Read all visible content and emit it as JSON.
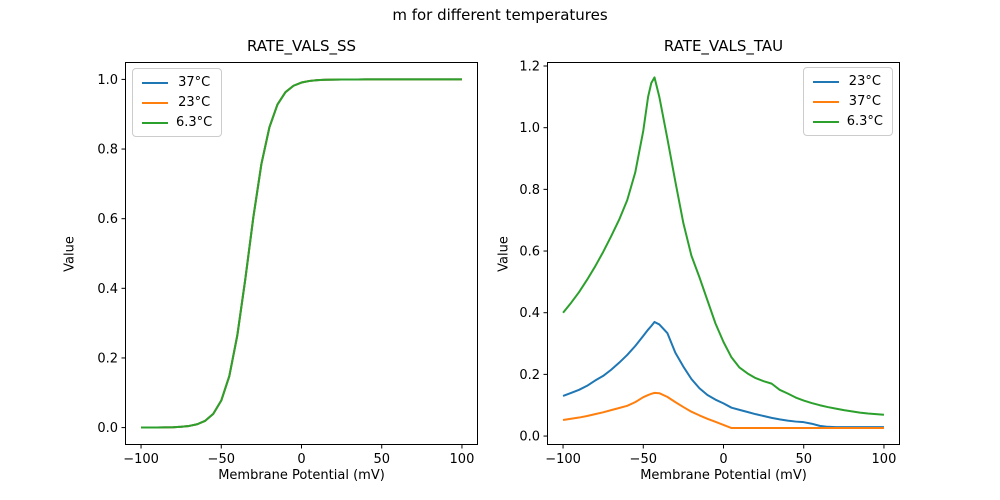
{
  "figure": {
    "suptitle": "m for different temperatures",
    "background": "#ffffff",
    "text_color": "#000000",
    "spine_color": "#000000",
    "legend_border_color": "#cccccc"
  },
  "chart_data": [
    {
      "type": "line",
      "title": "RATE_VALS_SS",
      "xlabel": "Membrane Potential (mV)",
      "ylabel": "Value",
      "grid": false,
      "legend_position": "upper left",
      "xlim": [
        -110,
        110
      ],
      "ylim": [
        -0.05,
        1.05
      ],
      "xticks": [
        -100,
        -50,
        0,
        50,
        100
      ],
      "yticks": [
        0.0,
        0.2,
        0.4,
        0.6,
        0.8,
        1.0
      ],
      "x": [
        -100,
        -95,
        -90,
        -85,
        -80,
        -75,
        -70,
        -65,
        -60,
        -55,
        -50,
        -45,
        -40,
        -35,
        -30,
        -25,
        -20,
        -15,
        -10,
        -5,
        0,
        5,
        10,
        15,
        20,
        25,
        30,
        35,
        40,
        45,
        50,
        55,
        60,
        65,
        70,
        75,
        80,
        85,
        90,
        95,
        100
      ],
      "series": [
        {
          "name": "37°C",
          "color": "#1f77b4",
          "values": [
            0.0001,
            0.0002,
            0.0003,
            0.0006,
            0.0011,
            0.0023,
            0.0047,
            0.0096,
            0.0196,
            0.0394,
            0.0777,
            0.1477,
            0.265,
            0.4271,
            0.6043,
            0.7569,
            0.8624,
            0.9277,
            0.9633,
            0.9818,
            0.991,
            0.9956,
            0.9978,
            0.9989,
            0.9995,
            0.9997,
            0.9999,
            0.9999,
            1,
            1,
            1,
            1,
            1,
            1,
            1,
            1,
            1,
            1,
            1,
            1,
            1
          ]
        },
        {
          "name": "23°C",
          "color": "#ff7f0e",
          "values": [
            0.0001,
            0.0002,
            0.0003,
            0.0006,
            0.0011,
            0.0023,
            0.0047,
            0.0096,
            0.0196,
            0.0394,
            0.0777,
            0.1477,
            0.265,
            0.4271,
            0.6043,
            0.7569,
            0.8624,
            0.9277,
            0.9633,
            0.9818,
            0.991,
            0.9956,
            0.9978,
            0.9989,
            0.9995,
            0.9997,
            0.9999,
            0.9999,
            1,
            1,
            1,
            1,
            1,
            1,
            1,
            1,
            1,
            1,
            1,
            1,
            1
          ]
        },
        {
          "name": "6.3°C",
          "color": "#2ca02c",
          "values": [
            0.0001,
            0.0002,
            0.0003,
            0.0006,
            0.0011,
            0.0023,
            0.0047,
            0.0096,
            0.0196,
            0.0394,
            0.0777,
            0.1477,
            0.265,
            0.4271,
            0.6043,
            0.7569,
            0.8624,
            0.9277,
            0.9633,
            0.9818,
            0.991,
            0.9956,
            0.9978,
            0.9989,
            0.9995,
            0.9997,
            0.9999,
            0.9999,
            1,
            1,
            1,
            1,
            1,
            1,
            1,
            1,
            1,
            1,
            1,
            1,
            1
          ]
        }
      ]
    },
    {
      "type": "line",
      "title": "RATE_VALS_TAU",
      "xlabel": "Membrane Potential (mV)",
      "ylabel": "Value",
      "grid": false,
      "legend_position": "upper right",
      "xlim": [
        -110,
        110
      ],
      "ylim": [
        -0.029,
        1.213
      ],
      "xticks": [
        -100,
        -50,
        0,
        50,
        100
      ],
      "yticks": [
        0.0,
        0.2,
        0.4,
        0.6,
        0.8,
        1.0,
        1.2
      ],
      "x": [
        -100,
        -95,
        -90,
        -85,
        -80,
        -75,
        -70,
        -65,
        -60,
        -55,
        -50,
        -47,
        -45,
        -43,
        -40,
        -35,
        -30,
        -25,
        -20,
        -15,
        -10,
        -5,
        0,
        5,
        10,
        15,
        20,
        25,
        30,
        35,
        40,
        45,
        50,
        55,
        60,
        65,
        70,
        75,
        80,
        85,
        90,
        95,
        100
      ],
      "series": [
        {
          "name": "23°C",
          "color": "#1f77b4",
          "values": [
            0.13,
            0.14,
            0.15,
            0.163,
            0.18,
            0.195,
            0.215,
            0.238,
            0.263,
            0.292,
            0.325,
            0.345,
            0.357,
            0.37,
            0.362,
            0.334,
            0.27,
            0.225,
            0.185,
            0.155,
            0.133,
            0.118,
            0.106,
            0.092,
            0.085,
            0.078,
            0.071,
            0.065,
            0.059,
            0.054,
            0.05,
            0.047,
            0.045,
            0.04,
            0.033,
            0.03,
            0.029,
            0.029,
            0.029,
            0.029,
            0.029,
            0.029,
            0.029
          ]
        },
        {
          "name": "37°C",
          "color": "#ff7f0e",
          "values": [
            0.052,
            0.056,
            0.06,
            0.065,
            0.071,
            0.077,
            0.084,
            0.091,
            0.098,
            0.11,
            0.126,
            0.133,
            0.137,
            0.14,
            0.139,
            0.127,
            0.11,
            0.094,
            0.079,
            0.067,
            0.056,
            0.046,
            0.036,
            0.026,
            0.026,
            0.026,
            0.026,
            0.026,
            0.026,
            0.026,
            0.026,
            0.026,
            0.026,
            0.026,
            0.026,
            0.026,
            0.026,
            0.026,
            0.026,
            0.026,
            0.026,
            0.026,
            0.026
          ]
        },
        {
          "name": "6.3°C",
          "color": "#2ca02c",
          "values": [
            0.4,
            0.432,
            0.467,
            0.507,
            0.55,
            0.597,
            0.648,
            0.702,
            0.765,
            0.855,
            0.99,
            1.1,
            1.145,
            1.163,
            1.1,
            0.965,
            0.825,
            0.69,
            0.585,
            0.515,
            0.44,
            0.365,
            0.305,
            0.255,
            0.222,
            0.203,
            0.188,
            0.178,
            0.17,
            0.15,
            0.138,
            0.125,
            0.115,
            0.107,
            0.1,
            0.094,
            0.089,
            0.084,
            0.08,
            0.076,
            0.073,
            0.071,
            0.069
          ]
        }
      ]
    }
  ]
}
